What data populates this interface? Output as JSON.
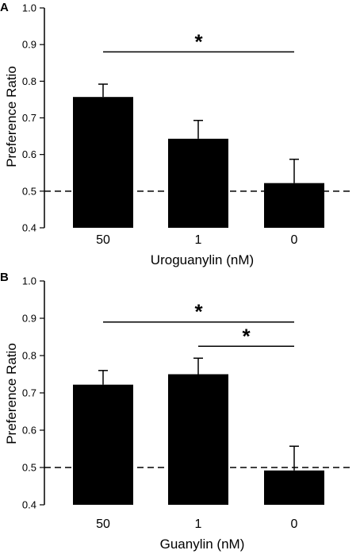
{
  "chart_data": [
    {
      "type": "bar",
      "panel_label": "A",
      "categories": [
        "50",
        "1",
        "0"
      ],
      "values": [
        0.757,
        0.643,
        0.522
      ],
      "error": [
        0.035,
        0.05,
        0.065
      ],
      "xlabel": "Uroguanylin (nM)",
      "ylabel": "Preference Ratio",
      "ylim": [
        0.4,
        1.0
      ],
      "yticks": [
        "0.4",
        "0.5",
        "0.6",
        "0.7",
        "0.8",
        "0.9",
        "1.0"
      ],
      "reference_line": 0.5,
      "significance": [
        {
          "from": 0,
          "to": 2,
          "y": 0.88,
          "mark": "*"
        }
      ],
      "bar_color": "#000000"
    },
    {
      "type": "bar",
      "panel_label": "B",
      "categories": [
        "50",
        "1",
        "0"
      ],
      "values": [
        0.722,
        0.75,
        0.492
      ],
      "error": [
        0.038,
        0.043,
        0.065
      ],
      "xlabel": "Guanylin (nM)",
      "ylabel": "Preference Ratio",
      "ylim": [
        0.4,
        1.0
      ],
      "yticks": [
        "0.4",
        "0.5",
        "0.6",
        "0.7",
        "0.8",
        "0.9",
        "1.0"
      ],
      "reference_line": 0.5,
      "significance": [
        {
          "from": 0,
          "to": 2,
          "y": 0.89,
          "mark": "*"
        },
        {
          "from": 1,
          "to": 2,
          "y": 0.825,
          "mark": "*"
        }
      ],
      "bar_color": "#000000"
    }
  ]
}
